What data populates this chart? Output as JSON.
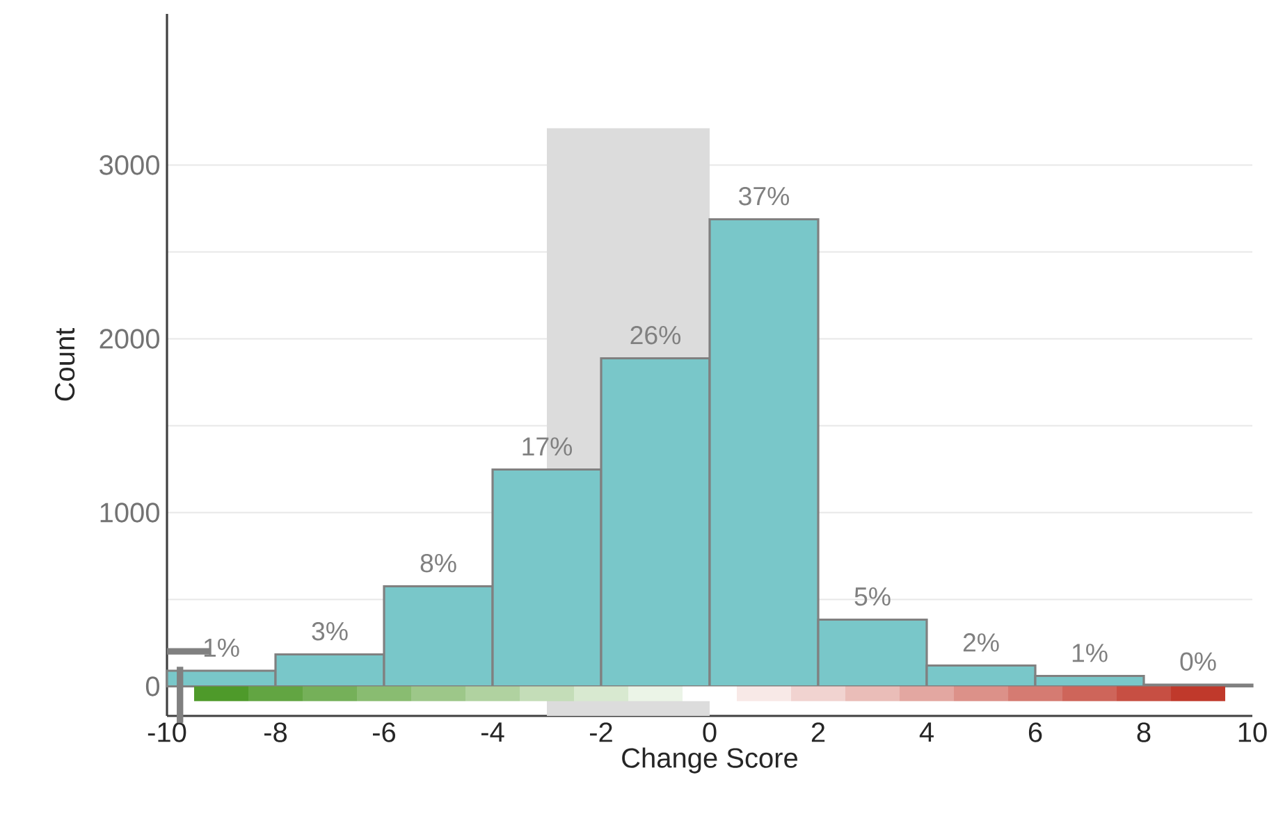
{
  "chart_data": {
    "type": "histogram",
    "xlabel": "Change Score",
    "ylabel": "Count",
    "bins": [
      -10,
      -8,
      -6,
      -4,
      -2,
      0,
      2,
      4,
      6,
      8,
      10
    ],
    "values": [
      90,
      184,
      576,
      1248,
      1888,
      2688,
      384,
      120,
      60,
      10
    ],
    "annotations": [
      {
        "text": "1%",
        "x": -9,
        "y": 90
      },
      {
        "text": "3%",
        "x": -7,
        "y": 184
      },
      {
        "text": "8%",
        "x": -5,
        "y": 576
      },
      {
        "text": "17%",
        "x": -3,
        "y": 1248
      },
      {
        "text": "26%",
        "x": -1,
        "y": 1888
      },
      {
        "text": "37%",
        "x": 1,
        "y": 2688
      },
      {
        "text": "5%",
        "x": 3,
        "y": 384
      },
      {
        "text": "2%",
        "x": 5,
        "y": 120
      },
      {
        "text": "1%",
        "x": 7,
        "y": 60
      },
      {
        "text": "0%",
        "x": 9,
        "y": 10
      }
    ],
    "color": "#79c7c9",
    "xlim": [
      -10,
      10
    ],
    "ylim": [
      -170,
      3870
    ],
    "xticks": [
      -10,
      -8,
      -6,
      -4,
      -2,
      0,
      2,
      4,
      6,
      8,
      10
    ],
    "yticks": [
      0,
      1000,
      2000,
      3000
    ],
    "grid": "y",
    "bands": [
      {
        "axis": "x",
        "from": -3,
        "to": 0,
        "color": "#dcdcdc"
      }
    ]
  }
}
